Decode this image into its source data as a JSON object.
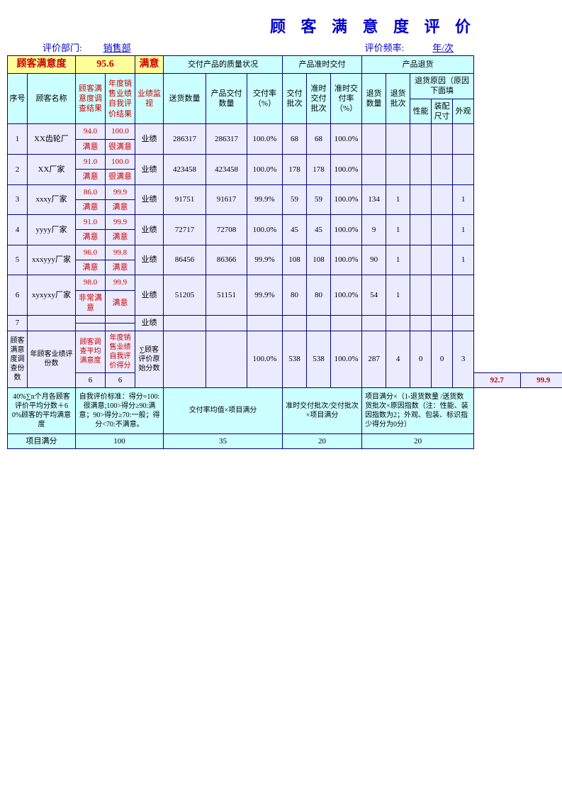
{
  "title": "顾 客 满 意 度 评 价",
  "header": {
    "dept_label": "评价部门:",
    "dept": "销售部",
    "freq_label": "评价频率:",
    "freq": "年/次"
  },
  "topRow": {
    "satisfaction": "顾客满意度",
    "score": "95.6",
    "status": "满意",
    "quality": "交付产品的质量状况",
    "ontime": "产品准时交付",
    "returns": "产品退货"
  },
  "cols": {
    "seq": "序号",
    "name": "顾客名称",
    "survey": "顾客满意度调查结果",
    "selfeval": "年度销售业绩自我评价结果",
    "monitor": "业绩监视",
    "ship_qty": "送货数量",
    "deliver_qty": "产品交付数量",
    "deliver_rate": "交付率（%）",
    "ship_batch": "交付批次",
    "ontime_batch": "准时交付批次",
    "ontime_rate": "准时交付率（%）",
    "return_qty": "退货数量",
    "return_batch": "退货批次",
    "return_reason": "退货原因（原因下面填",
    "perf": "性能",
    "size": "装配尺寸",
    "appear": "外观"
  },
  "rows": [
    {
      "seq": "1",
      "name": "XX齿轮厂",
      "s1": "94.0",
      "s2": "100.0",
      "t1": "满意",
      "t2": "很满意",
      "mon": "业绩",
      "ship": "286317",
      "deliv": "286317",
      "rate": "100.0%",
      "b1": "68",
      "b2": "68",
      "brate": "100.0%",
      "rq": "",
      "rb": "",
      "p": "",
      "sz": "",
      "ap": ""
    },
    {
      "seq": "2",
      "name": "XX厂家",
      "s1": "91.0",
      "s2": "100.0",
      "t1": "满意",
      "t2": "很满意",
      "mon": "业绩",
      "ship": "423458",
      "deliv": "423458",
      "rate": "100.0%",
      "b1": "178",
      "b2": "178",
      "brate": "100.0%",
      "rq": "",
      "rb": "",
      "p": "",
      "sz": "",
      "ap": ""
    },
    {
      "seq": "3",
      "name": "xxxy厂家",
      "s1": "86.0",
      "s2": "99.9",
      "t1": "满意",
      "t2": "满意",
      "mon": "业绩",
      "ship": "91751",
      "deliv": "91617",
      "rate": "99.9%",
      "b1": "59",
      "b2": "59",
      "brate": "100.0%",
      "rq": "134",
      "rb": "1",
      "p": "",
      "sz": "",
      "ap": "1"
    },
    {
      "seq": "4",
      "name": "yyyy厂家",
      "s1": "91.0",
      "s2": "99.9",
      "t1": "满意",
      "t2": "满意",
      "mon": "业绩",
      "ship": "72717",
      "deliv": "72708",
      "rate": "100.0%",
      "b1": "45",
      "b2": "45",
      "brate": "100.0%",
      "rq": "9",
      "rb": "1",
      "p": "",
      "sz": "",
      "ap": "1"
    },
    {
      "seq": "5",
      "name": "xxxyyy厂家",
      "s1": "96.0",
      "s2": "99.8",
      "t1": "满意",
      "t2": "满意",
      "mon": "业绩",
      "ship": "86456",
      "deliv": "86366",
      "rate": "99.9%",
      "b1": "108",
      "b2": "108",
      "brate": "100.0%",
      "rq": "90",
      "rb": "1",
      "p": "",
      "sz": "",
      "ap": "1"
    },
    {
      "seq": "6",
      "name": "xyxyxy厂家",
      "s1": "98.0",
      "s2": "99.9",
      "t1": "非常满意",
      "t2": "满意",
      "mon": "业绩",
      "ship": "51205",
      "deliv": "51151",
      "rate": "99.9%",
      "b1": "80",
      "b2": "80",
      "brate": "100.0%",
      "rq": "54",
      "rb": "1",
      "p": "",
      "sz": "",
      "ap": ""
    },
    {
      "seq": "7",
      "name": "",
      "s1": "",
      "s2": "",
      "t1": "",
      "t2": "",
      "mon": "业绩",
      "ship": "",
      "deliv": "",
      "rate": "",
      "b1": "",
      "b2": "",
      "brate": "",
      "rq": "",
      "rb": "",
      "p": "",
      "sz": "",
      "ap": ""
    }
  ],
  "summary": {
    "label1": "顾客满意度调查份数",
    "label2": "年顾客业绩评份数",
    "label3": "顾客调查平均满意度",
    "label4": "年度销售业绩自我评价得分",
    "label5": "∑顾客评价原始分数",
    "v1": "6",
    "v2": "6",
    "v3": "92.7",
    "v4": "99.9",
    "rate": "100.0%",
    "b1": "538",
    "b2": "538",
    "brate": "100.0%",
    "rq": "287",
    "rb": "4",
    "p": "0",
    "sz": "0",
    "ap": "3"
  },
  "footer": {
    "f1": "40%∑n个月各顾客评价平均分数＋60%顾客的平均满意度",
    "f2": "自我评价标准：得分=100:很满意;100>得分≥90:满意；90>得分≥70:一般；得分<70:不满意。",
    "f3": "交付率均值×项目满分",
    "f4": "准时交付批次/交付批次×项目满分",
    "f5": "项目满分×（1-退货数量 /送货数 货批次×原因指数（注：性能、装 因指数为2；外观、包装、标识指 少得分为0分）",
    "label": "项目满分",
    "v1": "100",
    "v2": "35",
    "v3": "20",
    "v4": "20"
  }
}
